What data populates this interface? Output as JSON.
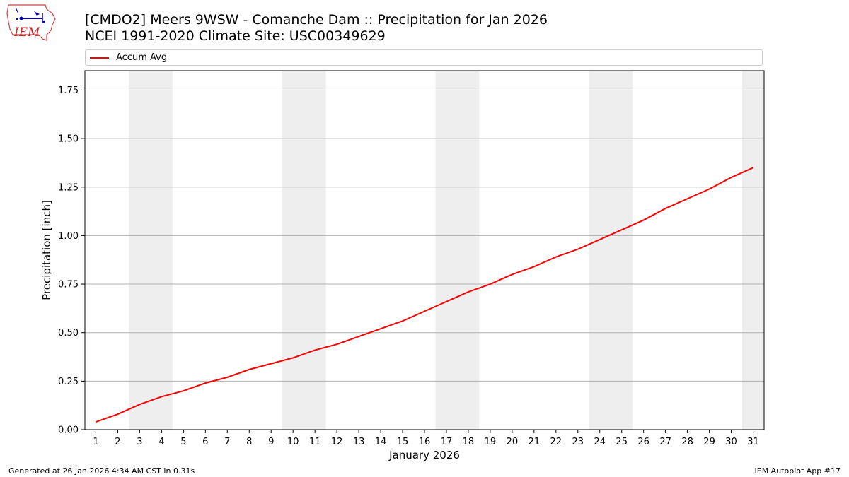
{
  "logo": {
    "text": "IEM"
  },
  "header": {
    "title_line1": "[CMDO2] Meers 9WSW - Comanche Dam :: Precipitation for Jan 2026",
    "title_line2": "NCEI 1991-2020 Climate Site: USC00349629"
  },
  "footer": {
    "generated": "Generated at 26 Jan 2026 4:34 AM CST in 0.31s",
    "app": "IEM Autoplot App #17"
  },
  "chart_data": {
    "type": "line",
    "xlabel": "January 2026",
    "ylabel": "Precipitation [inch]",
    "x": [
      1,
      2,
      3,
      4,
      5,
      6,
      7,
      8,
      9,
      10,
      11,
      12,
      13,
      14,
      15,
      16,
      17,
      18,
      19,
      20,
      21,
      22,
      23,
      24,
      25,
      26,
      27,
      28,
      29,
      30,
      31
    ],
    "x_tick_labels": [
      "1",
      "2",
      "3",
      "4",
      "5",
      "6",
      "7",
      "8",
      "9",
      "10",
      "11",
      "12",
      "13",
      "14",
      "15",
      "16",
      "17",
      "18",
      "19",
      "20",
      "21",
      "22",
      "23",
      "24",
      "25",
      "26",
      "27",
      "28",
      "29",
      "30",
      "31"
    ],
    "xlim": [
      0.5,
      31.5
    ],
    "ylim": [
      0,
      1.85
    ],
    "y_ticks": [
      0,
      0.25,
      0.5,
      0.75,
      1.0,
      1.25,
      1.5,
      1.75
    ],
    "y_tick_labels": [
      "0.00",
      "0.25",
      "0.50",
      "0.75",
      "1.00",
      "1.25",
      "1.50",
      "1.75"
    ],
    "grid": "y",
    "legend_position": "top, above plot",
    "weekend_shading_days": [
      [
        3,
        4
      ],
      [
        10,
        11
      ],
      [
        17,
        18
      ],
      [
        24,
        25
      ],
      [
        31,
        31
      ]
    ],
    "shade_color": "#eeeeee",
    "series": [
      {
        "name": "Accum Avg",
        "color": "#ff0000",
        "values": [
          0.04,
          0.08,
          0.13,
          0.17,
          0.2,
          0.24,
          0.27,
          0.31,
          0.34,
          0.37,
          0.41,
          0.44,
          0.48,
          0.52,
          0.56,
          0.61,
          0.66,
          0.71,
          0.75,
          0.8,
          0.84,
          0.89,
          0.93,
          0.98,
          1.03,
          1.08,
          1.14,
          1.19,
          1.24,
          1.3,
          1.35
        ]
      }
    ]
  }
}
